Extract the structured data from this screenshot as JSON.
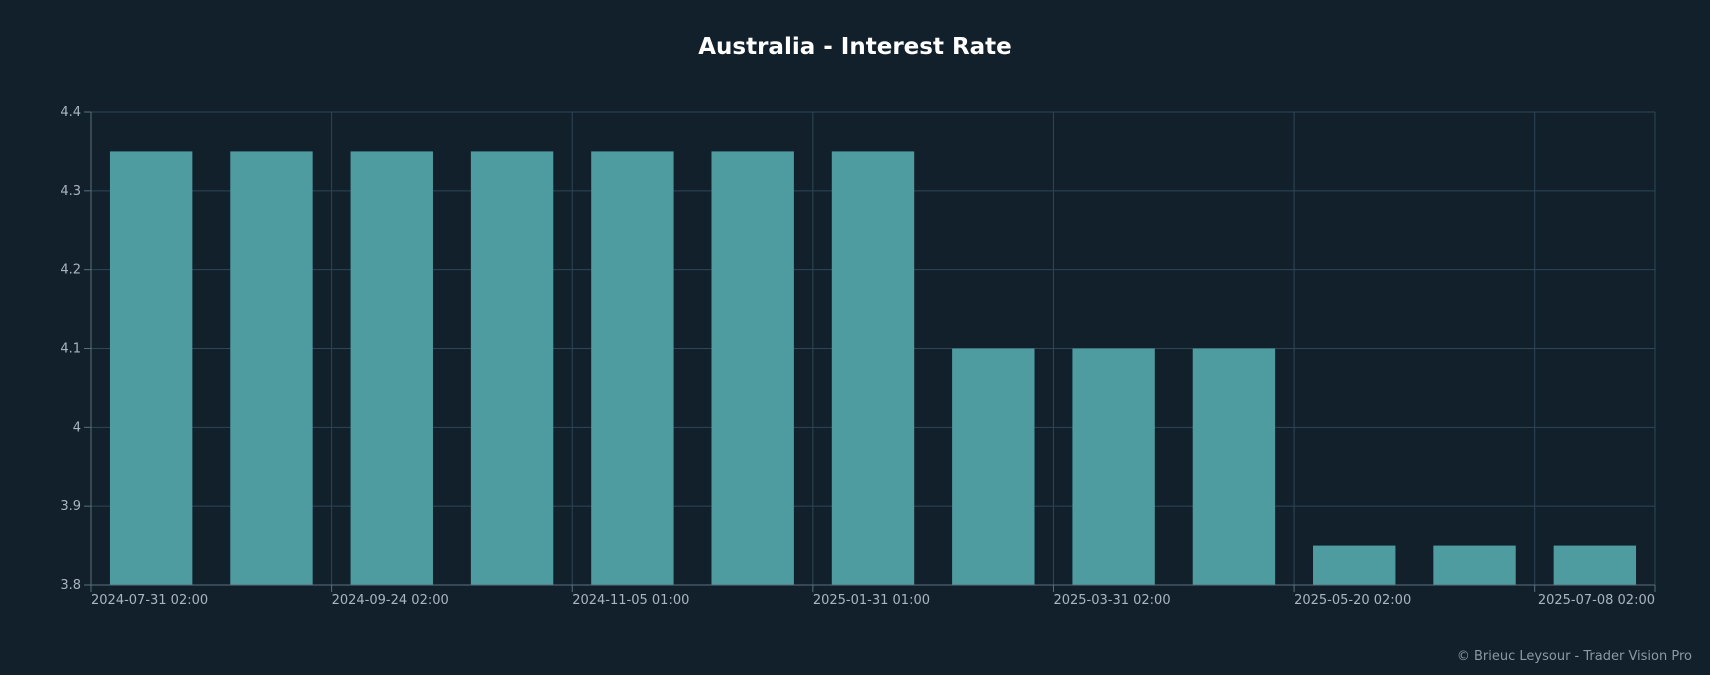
{
  "chart_data": {
    "type": "bar",
    "title": "Australia - Interest Rate",
    "xlabel": "",
    "ylabel": "",
    "ylim": [
      3.8,
      4.4
    ],
    "yticks": [
      "4.4",
      "4.3",
      "4.2",
      "4.1",
      "4",
      "3.9",
      "3.8"
    ],
    "ytick_values": [
      4.4,
      4.3,
      4.2,
      4.1,
      4.0,
      3.9,
      3.8
    ],
    "categories": [
      "",
      "",
      "",
      "",
      "",
      "",
      "",
      "",
      "",
      "",
      "",
      "",
      ""
    ],
    "values": [
      4.35,
      4.35,
      4.35,
      4.35,
      4.35,
      4.35,
      4.35,
      4.1,
      4.1,
      4.1,
      3.85,
      3.85,
      3.85
    ],
    "xtick_labels": [
      "2024-07-31 02:00",
      "2024-09-24 02:00",
      "2024-11-05 01:00",
      "2025-01-31 01:00",
      "2025-03-31 02:00",
      "2025-05-20 02:00",
      "2025-07-08 02:00"
    ],
    "grid": true,
    "colors": {
      "bar": "#4e9ba0",
      "grid": "#2e4656",
      "axis": "#5a6f7e",
      "background": "#12202b"
    }
  },
  "footer": {
    "credit": "© Brieuc Leysour - Trader Vision Pro"
  }
}
